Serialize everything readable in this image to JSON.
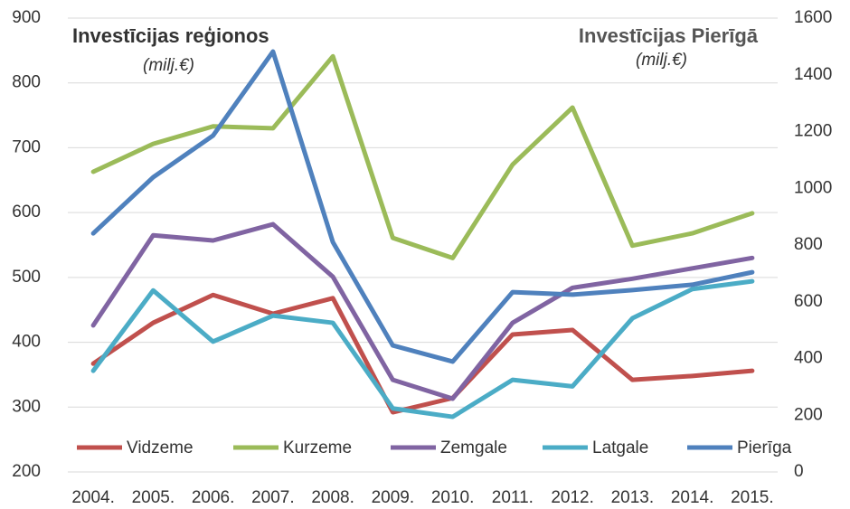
{
  "chart_data": {
    "type": "line",
    "annotations": [
      {
        "text": "Investīcijas reģionos"
      },
      {
        "text": "(milj.€)"
      },
      {
        "text": "Investīcijas Pierīgā"
      },
      {
        "text": "(milj.€)"
      }
    ],
    "categories": [
      "2004.",
      "2005.",
      "2006.",
      "2007.",
      "2008.",
      "2009.",
      "2010.",
      "2011.",
      "2012.",
      "2013.",
      "2014.",
      "2015."
    ],
    "series": [
      {
        "name": "Vidzeme",
        "color": "#c0504d",
        "values": [
          367,
          430,
          473,
          444,
          468,
          292,
          314,
          412,
          419,
          342,
          348,
          356
        ]
      },
      {
        "name": "Kurzeme",
        "color": "#9bbb59",
        "values": [
          663,
          706,
          733,
          730,
          841,
          561,
          530,
          674,
          762,
          549,
          568,
          599
        ]
      },
      {
        "name": "Zemgale",
        "color": "#8064a2",
        "values": [
          426,
          565,
          557,
          582,
          501,
          342,
          313,
          430,
          484,
          498,
          514,
          530
        ]
      },
      {
        "name": "Latgale",
        "color": "#4bacc6",
        "values": [
          356,
          480,
          401,
          441,
          430,
          298,
          285,
          342,
          332,
          437,
          482,
          494
        ]
      },
      {
        "name": "Pierīga",
        "color": "#4f81bd",
        "axis": "y2",
        "values": [
          841,
          1039,
          1186,
          1482,
          810,
          446,
          389,
          634,
          625,
          641,
          660,
          704
        ]
      }
    ],
    "ylim": [
      200,
      900
    ],
    "yticks": [
      200,
      300,
      400,
      500,
      600,
      700,
      800,
      900
    ],
    "y2lim": [
      0,
      1600
    ],
    "y2ticks": [
      0,
      200,
      400,
      600,
      800,
      1000,
      1200,
      1400,
      1600
    ],
    "grid": true
  }
}
